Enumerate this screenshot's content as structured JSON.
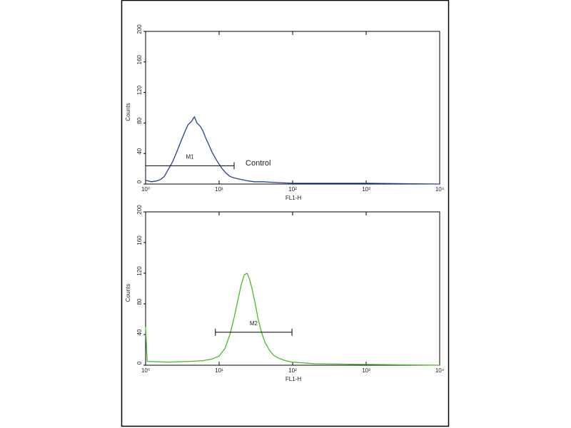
{
  "chart_data": [
    {
      "type": "line",
      "xlabel": "FL1-H",
      "ylabel": "Counts",
      "log_x": true,
      "xlim": [
        1,
        10000
      ],
      "ylim": [
        0,
        200
      ],
      "xticks": [
        {
          "value": 1,
          "label": "10⁰"
        },
        {
          "value": 10,
          "label": "10¹"
        },
        {
          "value": 100,
          "label": "10²"
        },
        {
          "value": 1000,
          "label": "10³"
        },
        {
          "value": 10000,
          "label": "10⁴"
        }
      ],
      "yticks": [
        0,
        40,
        80,
        120,
        160,
        200
      ],
      "series": [
        {
          "color": "#2b3f8f",
          "x": [
            1,
            1.2,
            1.4,
            1.6,
            1.8,
            2.0,
            2.3,
            2.6,
            3.0,
            3.4,
            3.8,
            4.2,
            4.6,
            5.0,
            5.5,
            6.0,
            6.6,
            7.2,
            8.0,
            9.0,
            10,
            11,
            12.5,
            14,
            16,
            20,
            25,
            30,
            40,
            60,
            100,
            200,
            1000,
            10000
          ],
          "values": [
            5,
            3,
            4,
            6,
            10,
            18,
            28,
            40,
            55,
            68,
            78,
            82,
            88,
            80,
            76,
            70,
            60,
            52,
            42,
            33,
            26,
            20,
            14,
            10,
            8,
            6,
            4,
            3,
            3,
            2,
            1,
            1,
            1,
            0
          ]
        }
      ],
      "marker": {
        "label": "M1",
        "start": 1,
        "end": 16,
        "y": 24
      },
      "annotation": "Control"
    },
    {
      "type": "line",
      "xlabel": "FL1-H",
      "ylabel": "Counts",
      "log_x": true,
      "xlim": [
        1,
        10000
      ],
      "ylim": [
        0,
        200
      ],
      "xticks": [
        {
          "value": 1,
          "label": "10⁰"
        },
        {
          "value": 10,
          "label": "10¹"
        },
        {
          "value": 100,
          "label": "10²"
        },
        {
          "value": 1000,
          "label": "10³"
        },
        {
          "value": 10000,
          "label": "10⁴"
        }
      ],
      "yticks": [
        0,
        40,
        80,
        120,
        160,
        200
      ],
      "series": [
        {
          "color": "#4cb82a",
          "x": [
            1,
            1.05,
            2,
            4,
            6,
            8,
            10,
            12,
            14,
            16,
            18,
            20,
            22,
            24,
            26,
            28,
            31,
            34,
            38,
            42,
            48,
            55,
            65,
            80,
            100,
            200,
            1000,
            10000
          ],
          "values": [
            50,
            5,
            4,
            5,
            6,
            8,
            12,
            22,
            40,
            62,
            85,
            105,
            118,
            120,
            112,
            100,
            80,
            60,
            42,
            30,
            20,
            13,
            9,
            6,
            4,
            2,
            1,
            0
          ]
        }
      ],
      "marker": {
        "label": "M2",
        "start": 8.9,
        "end": 98,
        "y": 43
      }
    }
  ]
}
